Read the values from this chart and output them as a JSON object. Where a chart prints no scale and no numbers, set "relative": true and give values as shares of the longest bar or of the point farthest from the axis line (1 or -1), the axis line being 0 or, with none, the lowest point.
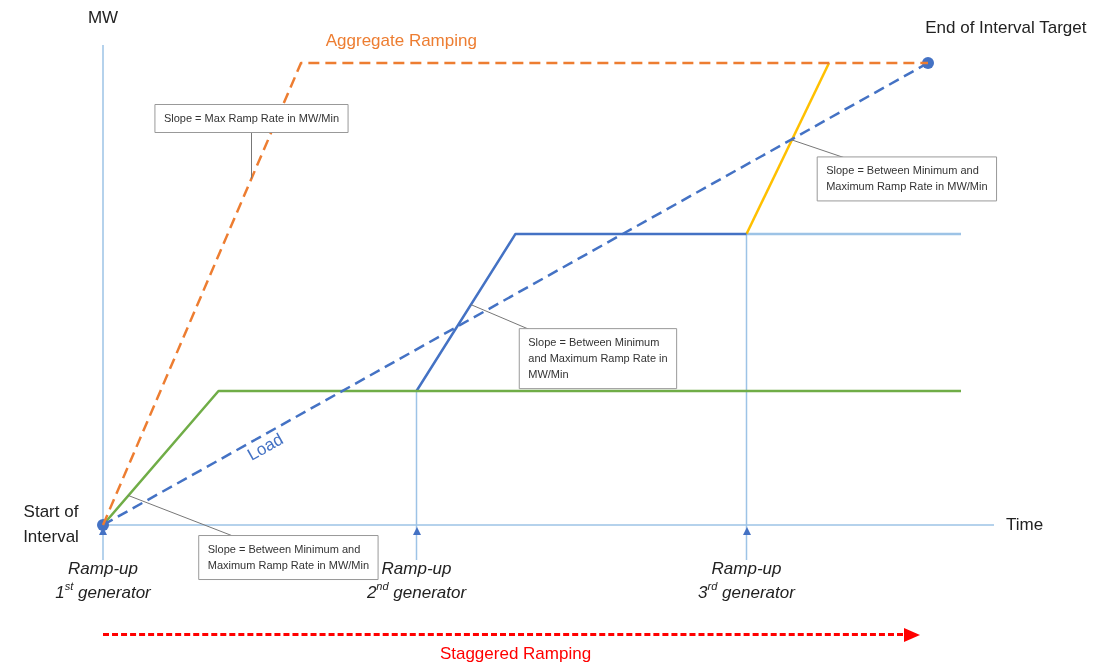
{
  "chart_data": {
    "type": "line",
    "relative": true,
    "xlabel": "Time",
    "ylabel": "MW",
    "legend": false,
    "grid": false,
    "marker": "none",
    "categories": [
      null,
      null,
      null,
      null,
      null,
      null,
      null,
      null,
      null,
      null,
      null,
      null,
      null,
      null,
      null,
      null,
      null,
      null,
      null,
      null,
      null,
      null,
      null,
      null,
      null,
      null,
      null,
      null,
      null,
      null,
      null,
      null,
      null,
      null,
      null,
      null,
      null,
      null,
      null,
      null,
      null,
      null,
      null,
      null,
      null,
      null,
      null,
      null,
      null,
      null,
      null,
      null,
      null,
      null,
      null
    ],
    "series": [
      {
        "name": "Aggregate Ramping",
        "color": "#ed7d31",
        "line_style": "dashed",
        "values": [
          0,
          null,
          null,
          null,
          null,
          null,
          null,
          null,
          null,
          null,
          null,
          null,
          1,
          null,
          null,
          null,
          null,
          null,
          null,
          null,
          null,
          null,
          null,
          null,
          null,
          null,
          null,
          null,
          null,
          null,
          null,
          null,
          null,
          null,
          null,
          null,
          null,
          null,
          null,
          null,
          null,
          null,
          null,
          null,
          null,
          null,
          null,
          null,
          null,
          null,
          1,
          null,
          null,
          null,
          null
        ]
      },
      {
        "name": "Load",
        "color": "#4472c4",
        "line_style": "dashed",
        "marker": "circle",
        "values": [
          0,
          null,
          null,
          null,
          null,
          null,
          null,
          null,
          null,
          null,
          null,
          null,
          null,
          null,
          null,
          null,
          null,
          null,
          null,
          null,
          null,
          null,
          null,
          null,
          null,
          null,
          null,
          null,
          null,
          null,
          null,
          null,
          null,
          null,
          null,
          null,
          null,
          null,
          null,
          null,
          null,
          null,
          null,
          null,
          null,
          null,
          null,
          null,
          null,
          null,
          1,
          null,
          null,
          null,
          null
        ]
      },
      {
        "color": "#70ad47",
        "line_style": "solid",
        "values": [
          0,
          null,
          null,
          null,
          null,
          null,
          null,
          0.29,
          null,
          null,
          null,
          null,
          null,
          null,
          null,
          null,
          null,
          null,
          null,
          null,
          null,
          null,
          null,
          null,
          null,
          null,
          null,
          null,
          null,
          null,
          null,
          null,
          null,
          null,
          null,
          null,
          null,
          null,
          null,
          null,
          null,
          null,
          null,
          null,
          null,
          null,
          null,
          null,
          null,
          null,
          null,
          null,
          0.29,
          null,
          null
        ]
      },
      {
        "color": "#4472c4",
        "line_style": "solid",
        "values": [
          null,
          null,
          null,
          null,
          null,
          null,
          null,
          null,
          null,
          null,
          null,
          null,
          null,
          null,
          null,
          null,
          null,
          null,
          null,
          0.29,
          null,
          null,
          null,
          null,
          null,
          0.63,
          null,
          null,
          null,
          null,
          null,
          null,
          null,
          null,
          null,
          null,
          null,
          null,
          null,
          0.63,
          null,
          null,
          null,
          null,
          null,
          null,
          null,
          null,
          null,
          null,
          null,
          null,
          null,
          null,
          null
        ]
      },
      {
        "color": "#ffc000",
        "line_style": "solid",
        "values": [
          null,
          null,
          null,
          null,
          null,
          null,
          null,
          null,
          null,
          null,
          null,
          null,
          null,
          null,
          null,
          null,
          null,
          null,
          null,
          null,
          null,
          null,
          null,
          null,
          null,
          null,
          null,
          null,
          null,
          null,
          null,
          null,
          null,
          null,
          null,
          null,
          null,
          null,
          null,
          0.63,
          null,
          null,
          null,
          null,
          1,
          null,
          null,
          null,
          null,
          null,
          null,
          null,
          null,
          null,
          null
        ]
      },
      {
        "color": "#9dc3e6",
        "line_style": "solid",
        "values": [
          null,
          null,
          null,
          null,
          null,
          null,
          null,
          null,
          null,
          null,
          null,
          null,
          null,
          null,
          null,
          null,
          null,
          null,
          null,
          null,
          null,
          null,
          null,
          null,
          null,
          null,
          null,
          null,
          null,
          null,
          null,
          null,
          null,
          null,
          null,
          null,
          null,
          null,
          null,
          0.63,
          null,
          null,
          null,
          null,
          null,
          null,
          null,
          null,
          null,
          null,
          null,
          null,
          0.63,
          null,
          null
        ]
      }
    ],
    "annotations": [
      "Start of\nInterval",
      "End of Interval Target",
      "Slope = Max Ramp Rate in MW/Min",
      "Slope = Between Minimum and\nMaximum Ramp Rate in MW/Min",
      "Slope = Between Minimum\nand Maximum Ramp Rate in\nMW/Min",
      "Slope = Between Minimum and\nMaximum Ramp Rate in MW/Min",
      "Ramp-up\n1$^{st}$ generator",
      "Ramp-up\n2$^{nd}$ generator",
      "Ramp-up\n3$^{rd}$ generator",
      "Staggered Ramping"
    ]
  }
}
